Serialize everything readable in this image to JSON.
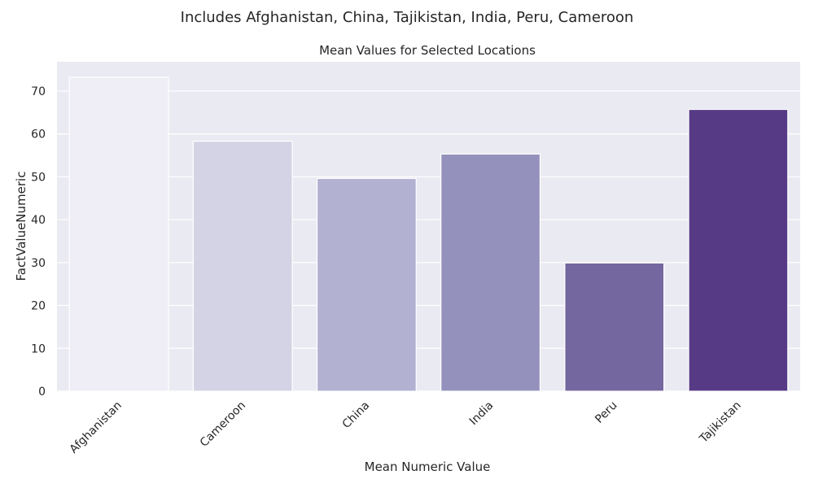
{
  "chart_data": {
    "type": "bar",
    "suptitle": "Includes Afghanistan, China, Tajikistan, India, Peru, Cameroon",
    "title": "Mean Values for Selected Locations",
    "xlabel": "Mean Numeric Value",
    "ylabel": "FactValueNumeric",
    "categories": [
      "Afghanistan",
      "Cameroon",
      "China",
      "India",
      "Peru",
      "Tajikistan"
    ],
    "values": [
      73.2,
      58.3,
      49.6,
      55.3,
      29.9,
      65.7
    ],
    "colors": [
      "#efedf5",
      "#d4d3e5",
      "#b2b1d1",
      "#9492bc",
      "#74669e",
      "#573a86"
    ],
    "ylim": [
      0,
      76.8
    ],
    "yticks": [
      0,
      10,
      20,
      30,
      40,
      50,
      60,
      70
    ],
    "grid": true,
    "background": "#eaeaf2"
  }
}
